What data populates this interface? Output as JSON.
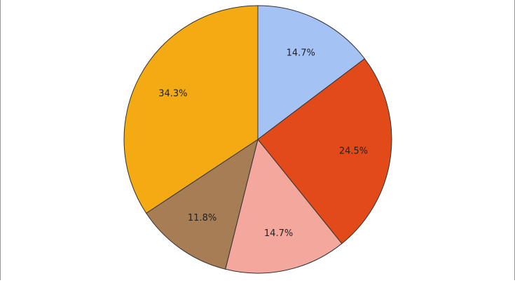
{
  "chart_data": {
    "type": "pie",
    "values": [
      14.7,
      24.5,
      14.7,
      11.8,
      34.3
    ],
    "value_labels": [
      "14.7%",
      "24.5%",
      "14.7%",
      "11.8%",
      "34.3%"
    ],
    "colors": [
      "#a4c2f4",
      "#e34a1a",
      "#f4a79d",
      "#a67d55",
      "#f4aa13"
    ]
  }
}
